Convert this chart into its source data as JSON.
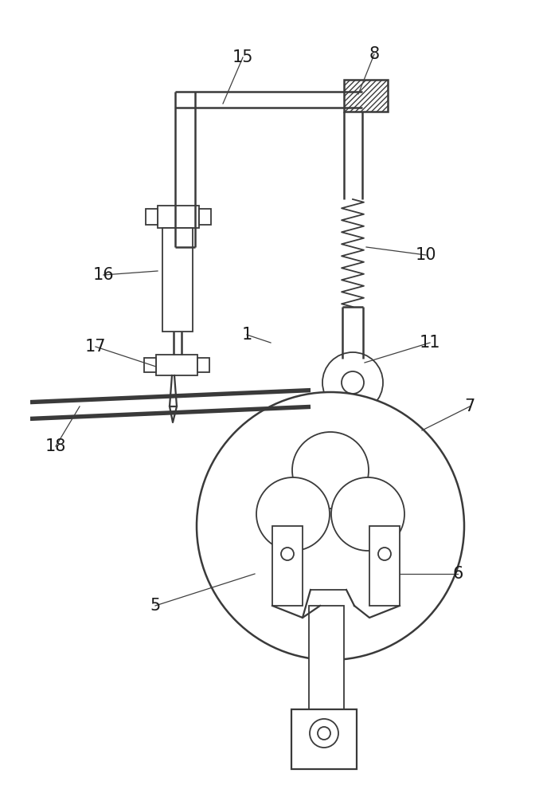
{
  "bg_color": "#ffffff",
  "line_color": "#3a3a3a",
  "lw": 1.3,
  "fig_width": 6.82,
  "fig_height": 10.0
}
